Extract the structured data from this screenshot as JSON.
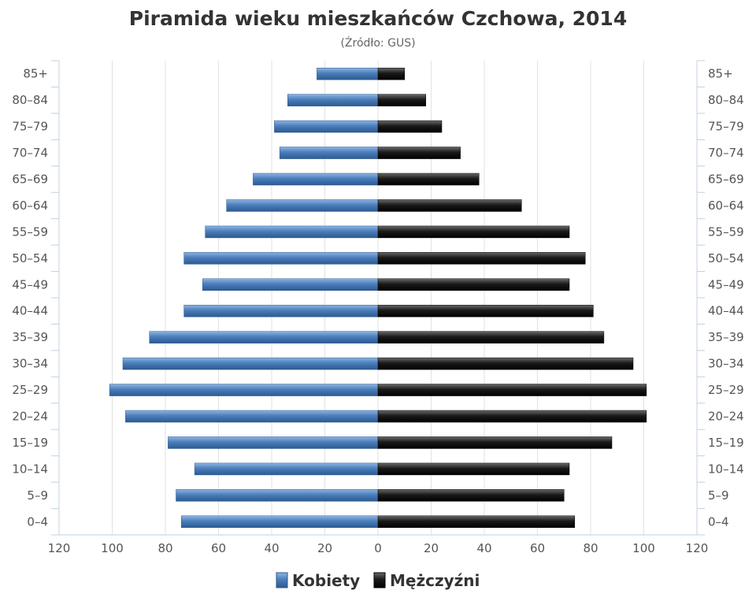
{
  "chart_data": {
    "type": "bar",
    "orientation": "horizontal-population-pyramid",
    "title": "Piramida wieku mieszkańców Czchowa, 2014",
    "subtitle": "(Źródło: GUS)",
    "categories": [
      "0–4",
      "5–9",
      "10–14",
      "15–19",
      "20–24",
      "25–29",
      "30–34",
      "35–39",
      "40–44",
      "45–49",
      "50–54",
      "55–59",
      "60–64",
      "65–69",
      "70–74",
      "75–79",
      "80–84",
      "85+"
    ],
    "series": [
      {
        "name": "Kobiety",
        "side": "left",
        "color": "#4a7ebb",
        "values": [
          74,
          76,
          69,
          79,
          95,
          101,
          96,
          86,
          73,
          66,
          73,
          65,
          57,
          47,
          37,
          39,
          34,
          23
        ]
      },
      {
        "name": "Mężczyźni",
        "side": "right",
        "color": "#1a1a1a",
        "values": [
          74,
          70,
          72,
          88,
          101,
          101,
          96,
          85,
          81,
          72,
          78,
          72,
          54,
          38,
          31,
          24,
          18,
          10
        ]
      }
    ],
    "x_ticks": [
      "120",
      "100",
      "80",
      "60",
      "40",
      "20",
      "0",
      "20",
      "40",
      "60",
      "80",
      "100",
      "120"
    ],
    "xlim": [
      -120,
      120
    ],
    "grid": true,
    "legend_position": "bottom-center"
  }
}
